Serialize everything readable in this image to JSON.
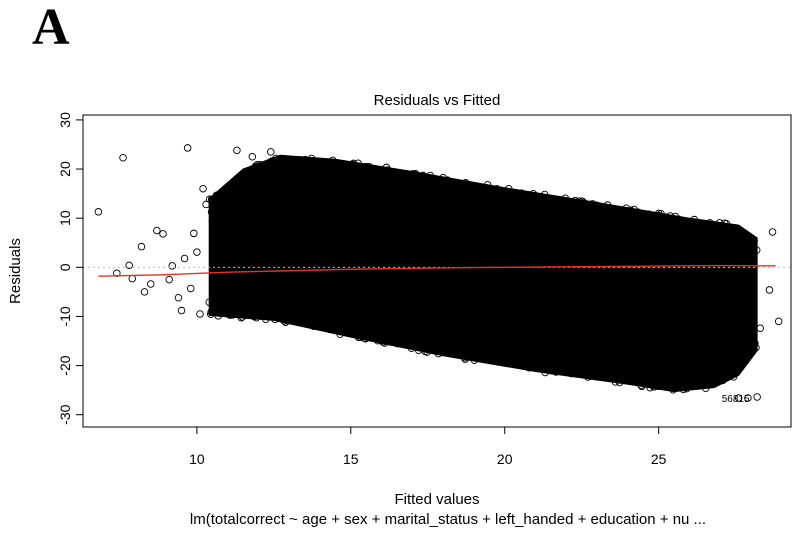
{
  "panel_label": "A",
  "chart_data": {
    "type": "scatter",
    "title": "Residuals vs Fitted",
    "xlabel": "Fitted values",
    "ylabel": "Residuals",
    "subtitle": "lm(totalcorrect ~ age + sex + marital_status + left_handed + education + nu ...",
    "xlim": [
      6.3,
      29.3
    ],
    "ylim": [
      -32.5,
      31
    ],
    "x_ticks": [
      10,
      15,
      20,
      25
    ],
    "y_ticks": [
      -30,
      -20,
      -10,
      0,
      10,
      20,
      30
    ],
    "reference_line": {
      "y": 0,
      "style": "dotted",
      "color": "#bbbbbb"
    },
    "smoother_color": "#e8321f",
    "point_color": "#000000",
    "point_style": "open-circle",
    "outlier_label": "56815",
    "smoother": [
      {
        "x": 6.8,
        "y": -1.8
      },
      {
        "x": 9,
        "y": -1.5
      },
      {
        "x": 11,
        "y": -1.0
      },
      {
        "x": 13,
        "y": -0.7
      },
      {
        "x": 15,
        "y": -0.4
      },
      {
        "x": 17,
        "y": -0.2
      },
      {
        "x": 19,
        "y": -0.05
      },
      {
        "x": 21,
        "y": 0.05
      },
      {
        "x": 23,
        "y": 0.15
      },
      {
        "x": 25,
        "y": 0.25
      },
      {
        "x": 27,
        "y": 0.35
      },
      {
        "x": 28.8,
        "y": 0.3
      }
    ],
    "sparse_points": [
      {
        "x": 6.8,
        "y": 11.3
      },
      {
        "x": 7.6,
        "y": 22.3
      },
      {
        "x": 7.4,
        "y": -1.2
      },
      {
        "x": 7.8,
        "y": 0.4
      },
      {
        "x": 7.9,
        "y": -2.3
      },
      {
        "x": 8.2,
        "y": 4.2
      },
      {
        "x": 8.3,
        "y": -5.0
      },
      {
        "x": 8.5,
        "y": -3.4
      },
      {
        "x": 8.7,
        "y": 7.5
      },
      {
        "x": 8.9,
        "y": 6.8
      },
      {
        "x": 9.1,
        "y": -2.5
      },
      {
        "x": 9.2,
        "y": 0.3
      },
      {
        "x": 9.4,
        "y": -6.2
      },
      {
        "x": 9.5,
        "y": -8.8
      },
      {
        "x": 9.6,
        "y": 1.8
      },
      {
        "x": 9.7,
        "y": 24.3
      },
      {
        "x": 9.8,
        "y": -4.3
      },
      {
        "x": 9.9,
        "y": 6.9
      },
      {
        "x": 10.0,
        "y": 3.1
      },
      {
        "x": 10.1,
        "y": -9.5
      },
      {
        "x": 10.2,
        "y": 16.0
      },
      {
        "x": 10.3,
        "y": 12.8
      },
      {
        "x": 10.4,
        "y": -7.1
      },
      {
        "x": 10.5,
        "y": 9.4
      },
      {
        "x": 11.3,
        "y": 23.8
      },
      {
        "x": 11.8,
        "y": 22.5
      },
      {
        "x": 12.4,
        "y": 23.5
      },
      {
        "x": 27.6,
        "y": -26.6
      },
      {
        "x": 27.9,
        "y": -26.6
      },
      {
        "x": 28.2,
        "y": -26.4
      },
      {
        "x": 28.6,
        "y": -4.6
      },
      {
        "x": 28.9,
        "y": -11.0
      },
      {
        "x": 28.7,
        "y": 7.2
      },
      {
        "x": 28.3,
        "y": -12.4
      },
      {
        "x": 28.1,
        "y": 5.3
      },
      {
        "x": 27.8,
        "y": -15.2
      },
      {
        "x": 27.7,
        "y": -19.3
      }
    ],
    "dense_band": {
      "x_range": [
        10.4,
        28.2
      ],
      "upper_edge": [
        {
          "x": 10.4,
          "y": 14.0
        },
        {
          "x": 11.5,
          "y": 20.0
        },
        {
          "x": 12.7,
          "y": 22.8
        },
        {
          "x": 14.5,
          "y": 22.0
        },
        {
          "x": 17,
          "y": 19.5
        },
        {
          "x": 20,
          "y": 16.2
        },
        {
          "x": 23,
          "y": 13.2
        },
        {
          "x": 26,
          "y": 10.0
        },
        {
          "x": 27.6,
          "y": 8.6
        },
        {
          "x": 28.2,
          "y": 6.0
        }
      ],
      "lower_edge": [
        {
          "x": 10.4,
          "y": -9.8
        },
        {
          "x": 12.5,
          "y": -10.8
        },
        {
          "x": 15,
          "y": -14.2
        },
        {
          "x": 18,
          "y": -18.0
        },
        {
          "x": 21,
          "y": -21.2
        },
        {
          "x": 24,
          "y": -23.8
        },
        {
          "x": 25.5,
          "y": -25.3
        },
        {
          "x": 26.8,
          "y": -24.5
        },
        {
          "x": 27.6,
          "y": -22.0
        },
        {
          "x": 28.2,
          "y": -17.0
        }
      ]
    }
  }
}
